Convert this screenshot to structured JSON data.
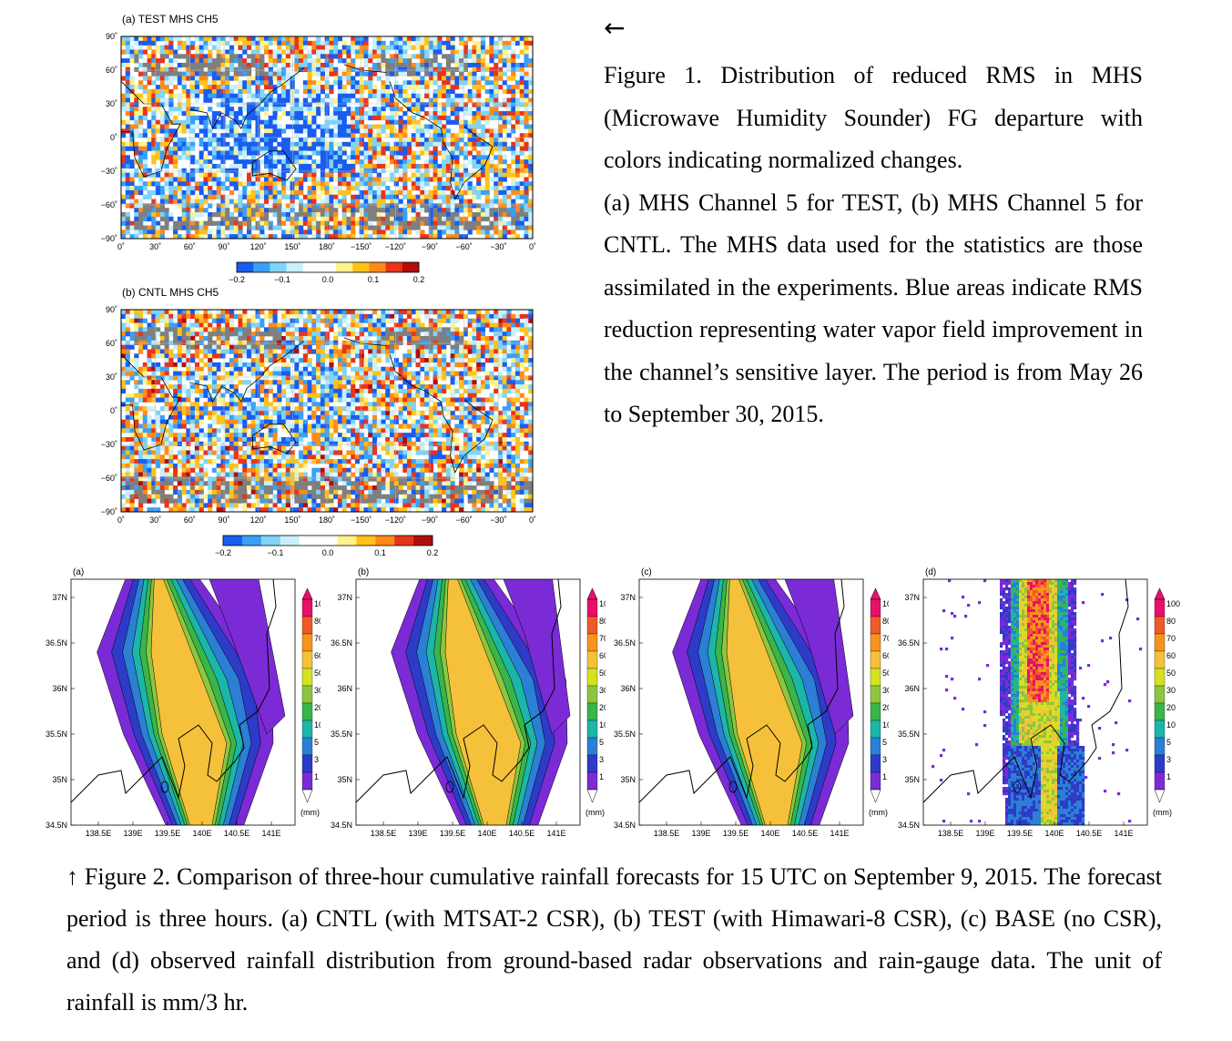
{
  "figure1": {
    "panels": [
      {
        "title": "(a) TEST MHS CH5",
        "lat_ticks": [
          "90˚",
          "60˚",
          "30˚",
          "0˚",
          "−30˚",
          "−60˚",
          "−90˚"
        ],
        "lon_ticks": [
          "0˚",
          "30˚",
          "60˚",
          "90˚",
          "120˚",
          "150˚",
          "180˚",
          "−150˚",
          "−120˚",
          "−90˚",
          "−60˚",
          "−30˚",
          "0˚"
        ],
        "colorbar_labels": [
          "−0.2",
          "−0.1",
          "0.0",
          "0.1",
          "0.2"
        ],
        "seed": 11,
        "blue_bias": 0.45
      },
      {
        "title": "(b) CNTL MHS CH5",
        "lat_ticks": [
          "90˚",
          "60˚",
          "30˚",
          "0˚",
          "−30˚",
          "−60˚",
          "−90˚"
        ],
        "lon_ticks": [
          "0˚",
          "30˚",
          "60˚",
          "90˚",
          "120˚",
          "150˚",
          "180˚",
          "−150˚",
          "−120˚",
          "−90˚",
          "−60˚",
          "−30˚",
          "0˚"
        ],
        "colorbar_labels": [
          "−0.2",
          "−0.1",
          "0.0",
          "0.1",
          "0.2"
        ],
        "seed": 29,
        "blue_bias": 0.18
      }
    ],
    "colorbar_colors": [
      "#1a5cf0",
      "#3aa0f5",
      "#7fd4f7",
      "#c9f0fb",
      "#ffffff",
      "#ffffff",
      "#fff28a",
      "#ffc21a",
      "#ff8a1a",
      "#e8341c",
      "#b00d0d"
    ],
    "land_gray": "#7f7f7f"
  },
  "figure1_caption": {
    "arrow": "←",
    "line1": "Figure 1. Distribution of reduced RMS in MHS (Microwave Humidity Sounder) FG departure with colors indicating normalized changes.",
    "line2": "(a) MHS Channel 5 for TEST, (b) MHS Channel 5 for CNTL. The MHS data used for the statistics are those assimilated in the experiments. Blue areas indicate RMS reduction representing water vapor field improvement in the channel’s sensitive layer. The period is from May 26 to September 30, 2015."
  },
  "figure2": {
    "panels": [
      {
        "label": "(a)",
        "variant": "cntl"
      },
      {
        "label": "(b)",
        "variant": "test"
      },
      {
        "label": "(c)",
        "variant": "base"
      },
      {
        "label": "(d)",
        "variant": "obs"
      }
    ],
    "lat_ticks": [
      "37N",
      "36.5N",
      "36N",
      "35.5N",
      "35N",
      "34.5N"
    ],
    "lon_ticks": [
      "138.5E",
      "139E",
      "139.5E",
      "140E",
      "140.5E",
      "141E"
    ],
    "colorbar_levels": [
      "100",
      "80",
      "70",
      "60",
      "50",
      "30",
      "20",
      "10",
      "5",
      "3",
      "1"
    ],
    "colorbar_unit": "(mm)",
    "colorbar_colors": [
      "#e8106a",
      "#f05a28",
      "#f7941d",
      "#f6c13a",
      "#d4e21f",
      "#8cc63f",
      "#39b54a",
      "#1bb6a8",
      "#2b7fd4",
      "#2e3bc9",
      "#7a2bd6",
      "#ffffff"
    ]
  },
  "figure2_caption": {
    "text": "↑ Figure 2. Comparison of three-hour cumulative rainfall forecasts for 15 UTC on September 9, 2015. The forecast period is three hours. (a) CNTL (with MTSAT-2 CSR), (b) TEST (with Himawari-8 CSR), (c) BASE (no CSR), and (d) observed rainfall distribution from ground-based radar observations and rain-gauge data. The unit of rainfall is mm/3 hr."
  }
}
